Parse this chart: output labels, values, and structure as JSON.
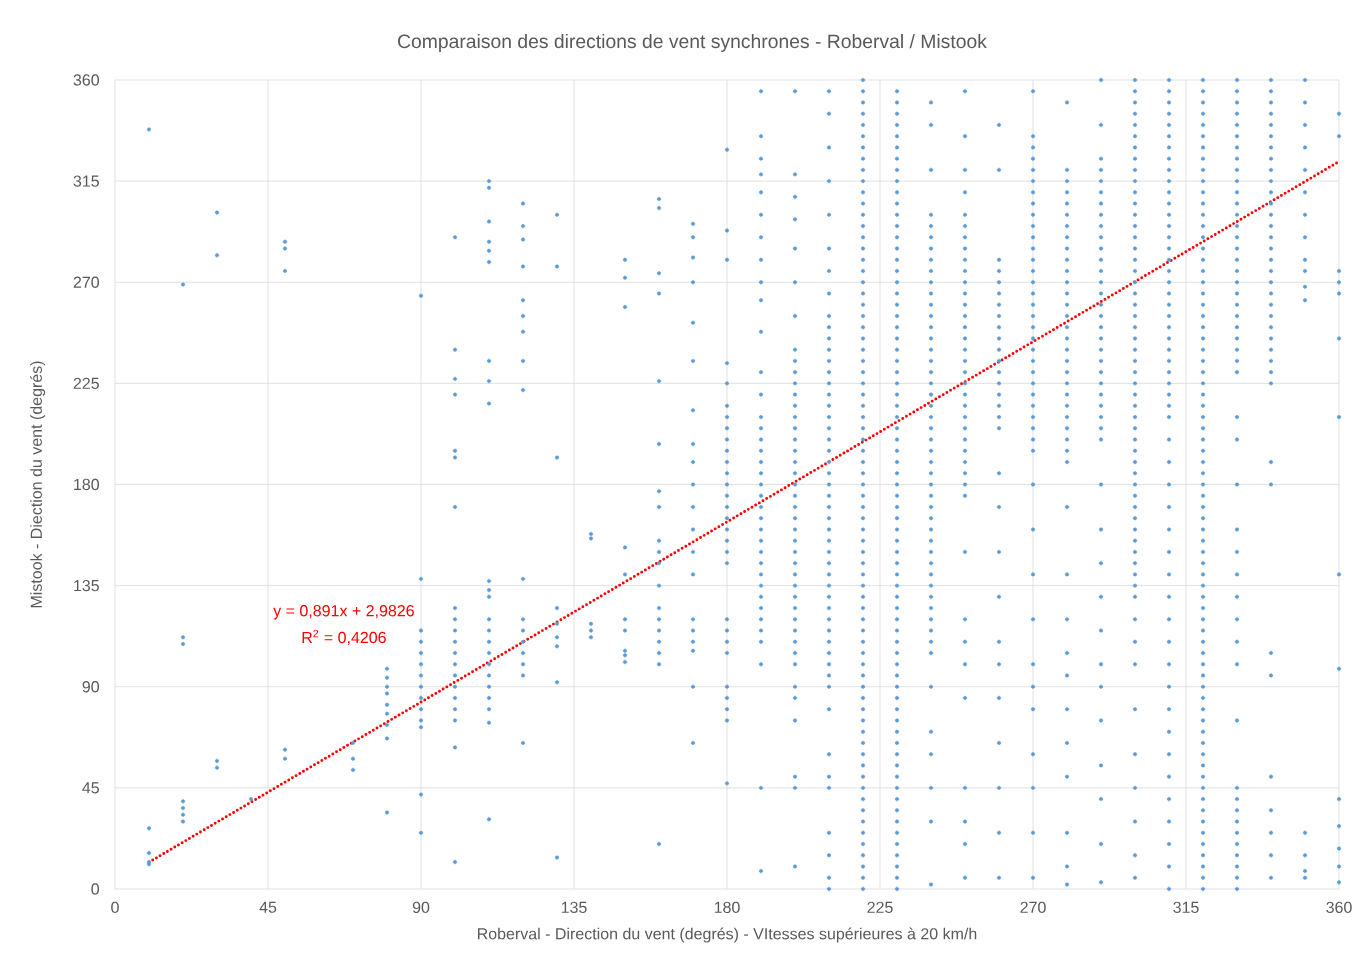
{
  "chart_data": {
    "type": "scatter",
    "title": "Comparaison des directions de vent synchrones - Roberval / Mistook",
    "xlabel": "Roberval - Direction du vent (degrés) - VItesses supérieures à 20 km/h",
    "ylabel": "Mistook - Diection du vent (degrés)",
    "annotations": [
      "y = 0,891x + 2,9826",
      "R$^{2}$ = 0,4206"
    ],
    "xlim": [
      0,
      360
    ],
    "ylim": [
      0,
      360
    ],
    "xticks": [
      0,
      45,
      90,
      135,
      180,
      225,
      270,
      315,
      360
    ],
    "yticks": [
      0,
      45,
      90,
      135,
      180,
      225,
      270,
      315,
      360
    ],
    "grid": true,
    "marker": "circle",
    "series": [
      {
        "color": "#5b9bd5",
        "x": [
          10,
          10,
          10,
          10,
          10
        ],
        "values": [
          11,
          12,
          16,
          27,
          338
        ]
      },
      {
        "color": "#5b9bd5",
        "x": [
          20,
          20,
          20,
          20,
          20,
          20,
          20
        ],
        "values": [
          30,
          33,
          36,
          39,
          109,
          112,
          269
        ]
      },
      {
        "color": "#5b9bd5",
        "x": [
          30,
          30,
          30,
          30
        ],
        "values": [
          54,
          57,
          282,
          301
        ]
      },
      {
        "color": "#5b9bd5",
        "x": [
          40
        ],
        "values": [
          40
        ]
      },
      {
        "color": "#5b9bd5",
        "x": [
          50,
          50,
          50,
          50,
          50
        ],
        "values": [
          58,
          62,
          275,
          285,
          288
        ]
      },
      {
        "color": "#5b9bd5",
        "x": [
          70,
          70,
          70
        ],
        "values": [
          53,
          58,
          65
        ]
      },
      {
        "color": "#5b9bd5",
        "x": [
          80,
          80,
          80,
          80,
          80,
          80,
          80,
          80,
          80
        ],
        "values": [
          34,
          67,
          73,
          78,
          82,
          87,
          90,
          94,
          98
        ]
      },
      {
        "color": "#5b9bd5",
        "x": [
          90,
          90,
          90,
          90,
          90,
          90,
          90,
          90,
          90,
          90,
          90,
          90,
          90,
          90
        ],
        "values": [
          25,
          42,
          72,
          75,
          80,
          85,
          90,
          95,
          100,
          105,
          110,
          115,
          138,
          264
        ]
      },
      {
        "color": "#5b9bd5",
        "x": [
          100,
          100,
          100,
          100,
          100,
          100,
          100,
          100,
          100,
          100,
          100,
          100,
          100,
          100,
          100,
          100,
          100,
          100,
          100,
          100
        ],
        "values": [
          12,
          63,
          75,
          80,
          85,
          90,
          95,
          100,
          105,
          110,
          115,
          120,
          125,
          170,
          192,
          195,
          220,
          227,
          240,
          290
        ]
      },
      {
        "color": "#5b9bd5",
        "x": [
          110,
          110,
          110,
          110,
          110,
          110,
          110,
          110,
          110,
          110,
          110,
          110,
          110,
          110,
          110,
          110,
          110,
          110,
          110,
          110,
          110,
          110,
          110
        ],
        "values": [
          31,
          74,
          80,
          85,
          90,
          95,
          100,
          105,
          110,
          115,
          120,
          130,
          133,
          137,
          216,
          226,
          235,
          279,
          284,
          288,
          297,
          312,
          315
        ]
      },
      {
        "color": "#5b9bd5",
        "x": [
          120,
          120,
          120,
          120,
          120,
          120,
          120,
          120,
          120,
          120,
          120,
          120,
          120,
          120,
          120,
          120,
          120
        ],
        "values": [
          65,
          95,
          100,
          105,
          110,
          115,
          120,
          138,
          222,
          235,
          248,
          255,
          262,
          277,
          289,
          295,
          305
        ]
      },
      {
        "color": "#5b9bd5",
        "x": [
          130,
          130,
          130,
          130,
          130,
          130,
          130,
          130,
          130
        ],
        "values": [
          14,
          92,
          108,
          112,
          118,
          125,
          192,
          277,
          300
        ]
      },
      {
        "color": "#5b9bd5",
        "x": [
          140,
          140,
          140,
          140,
          140
        ],
        "values": [
          112,
          115,
          118,
          156,
          158
        ]
      },
      {
        "color": "#5b9bd5",
        "x": [
          150,
          150,
          150,
          150,
          150,
          150,
          150,
          150,
          150,
          150
        ],
        "values": [
          101,
          104,
          106,
          115,
          120,
          140,
          152,
          259,
          272,
          280
        ]
      },
      {
        "color": "#5b9bd5",
        "x": [
          160,
          160,
          160,
          160,
          160,
          160,
          160,
          160,
          160,
          160,
          160,
          160,
          160,
          160,
          160,
          160,
          160,
          160,
          160
        ],
        "values": [
          20,
          100,
          105,
          110,
          115,
          120,
          125,
          135,
          145,
          150,
          155,
          170,
          177,
          198,
          226,
          265,
          274,
          303,
          307
        ]
      },
      {
        "color": "#5b9bd5",
        "x": [
          170,
          170,
          170,
          170,
          170,
          170,
          170,
          170,
          170,
          170,
          170,
          170,
          170,
          170,
          170,
          170,
          170,
          170,
          170,
          170
        ],
        "values": [
          65,
          90,
          106,
          110,
          115,
          120,
          140,
          150,
          160,
          170,
          180,
          190,
          198,
          213,
          235,
          252,
          270,
          281,
          290,
          296
        ]
      },
      {
        "color": "#5b9bd5",
        "x": [
          180,
          180,
          180,
          180,
          180,
          180,
          180,
          180,
          180,
          180,
          180,
          180,
          180,
          180,
          180,
          180,
          180,
          180,
          180,
          180,
          180,
          180,
          180,
          180,
          180,
          180,
          180,
          180,
          180
        ],
        "values": [
          47,
          75,
          80,
          85,
          90,
          105,
          110,
          115,
          120,
          145,
          150,
          155,
          160,
          165,
          170,
          175,
          180,
          185,
          190,
          195,
          200,
          205,
          210,
          215,
          225,
          234,
          280,
          293,
          329
        ]
      },
      {
        "color": "#5b9bd5",
        "x": [
          190,
          190,
          190,
          190,
          190,
          190,
          190,
          190,
          190,
          190,
          190,
          190,
          190,
          190,
          190,
          190,
          190,
          190,
          190,
          190,
          190,
          190,
          190,
          190,
          190,
          190,
          190,
          190,
          190,
          190,
          190,
          190,
          190,
          190,
          190,
          190,
          190
        ],
        "values": [
          8,
          45,
          100,
          110,
          115,
          120,
          125,
          130,
          135,
          140,
          145,
          150,
          155,
          160,
          165,
          170,
          175,
          180,
          185,
          190,
          195,
          200,
          205,
          210,
          220,
          230,
          248,
          262,
          270,
          280,
          290,
          300,
          310,
          318,
          325,
          335,
          355
        ]
      },
      {
        "color": "#5b9bd5",
        "x": [
          200,
          200,
          200,
          200,
          200,
          200,
          200,
          200,
          200,
          200,
          200,
          200,
          200,
          200,
          200,
          200,
          200,
          200,
          200,
          200,
          200,
          200,
          200,
          200,
          200,
          200,
          200,
          200,
          200,
          200,
          200,
          200,
          200,
          200,
          200,
          200,
          200,
          200,
          200,
          200,
          200,
          200
        ],
        "values": [
          10,
          45,
          50,
          75,
          85,
          90,
          100,
          105,
          110,
          115,
          120,
          125,
          130,
          135,
          140,
          145,
          150,
          155,
          160,
          165,
          170,
          175,
          180,
          185,
          190,
          195,
          200,
          205,
          210,
          215,
          220,
          225,
          230,
          235,
          240,
          255,
          270,
          285,
          298,
          308,
          318,
          355
        ]
      },
      {
        "color": "#5b9bd5",
        "x": [
          210,
          210,
          210,
          210,
          210,
          210,
          210,
          210,
          210,
          210,
          210,
          210,
          210,
          210,
          210,
          210,
          210,
          210,
          210,
          210,
          210,
          210,
          210,
          210,
          210,
          210,
          210,
          210,
          210,
          210,
          210,
          210,
          210,
          210,
          210,
          210,
          210,
          210,
          210,
          210,
          210,
          210,
          210,
          210,
          210,
          210,
          210,
          210,
          210,
          210
        ],
        "values": [
          0,
          5,
          15,
          25,
          45,
          50,
          60,
          80,
          90,
          95,
          100,
          105,
          110,
          115,
          120,
          125,
          130,
          135,
          140,
          145,
          150,
          155,
          160,
          165,
          170,
          175,
          180,
          185,
          190,
          195,
          200,
          205,
          210,
          215,
          220,
          225,
          230,
          235,
          240,
          245,
          250,
          255,
          265,
          275,
          285,
          300,
          315,
          330,
          345,
          355
        ]
      },
      {
        "color": "#5b9bd5",
        "x": [
          220,
          220,
          220,
          220,
          220,
          220,
          220,
          220,
          220,
          220,
          220,
          220,
          220,
          220,
          220,
          220,
          220,
          220,
          220,
          220,
          220,
          220,
          220,
          220,
          220,
          220,
          220,
          220,
          220,
          220,
          220,
          220,
          220,
          220,
          220,
          220,
          220,
          220,
          220,
          220,
          220,
          220,
          220,
          220,
          220,
          220,
          220,
          220,
          220,
          220,
          220,
          220,
          220,
          220,
          220,
          220,
          220,
          220,
          220,
          220,
          220,
          220,
          220,
          220,
          220,
          220,
          220,
          220,
          220,
          220,
          220,
          220,
          220
        ],
        "values": [
          0,
          5,
          10,
          15,
          20,
          25,
          30,
          35,
          40,
          45,
          50,
          55,
          60,
          65,
          70,
          75,
          80,
          85,
          90,
          95,
          100,
          105,
          110,
          115,
          120,
          125,
          130,
          135,
          140,
          145,
          150,
          155,
          160,
          165,
          170,
          175,
          180,
          185,
          190,
          195,
          200,
          205,
          210,
          215,
          220,
          225,
          230,
          235,
          240,
          245,
          250,
          255,
          260,
          265,
          270,
          275,
          280,
          285,
          290,
          295,
          300,
          305,
          310,
          315,
          320,
          325,
          330,
          335,
          340,
          345,
          350,
          355,
          360
        ]
      },
      {
        "color": "#5b9bd5",
        "x": [
          230,
          230,
          230,
          230,
          230,
          230,
          230,
          230,
          230,
          230,
          230,
          230,
          230,
          230,
          230,
          230,
          230,
          230,
          230,
          230,
          230,
          230,
          230,
          230,
          230,
          230,
          230,
          230,
          230,
          230,
          230,
          230,
          230,
          230,
          230,
          230,
          230,
          230,
          230,
          230,
          230,
          230,
          230,
          230,
          230,
          230,
          230,
          230,
          230,
          230,
          230,
          230,
          230,
          230,
          230,
          230,
          230,
          230,
          230,
          230,
          230,
          230,
          230,
          230,
          230,
          230,
          230,
          230,
          230,
          230,
          230,
          230
        ],
        "values": [
          0,
          5,
          10,
          15,
          20,
          25,
          30,
          35,
          40,
          45,
          50,
          55,
          60,
          65,
          70,
          75,
          80,
          85,
          90,
          95,
          100,
          105,
          110,
          115,
          120,
          125,
          130,
          135,
          140,
          145,
          150,
          155,
          160,
          165,
          170,
          175,
          180,
          185,
          190,
          195,
          200,
          205,
          210,
          215,
          220,
          225,
          230,
          235,
          240,
          245,
          250,
          255,
          260,
          265,
          270,
          275,
          280,
          285,
          290,
          295,
          300,
          305,
          310,
          315,
          320,
          325,
          330,
          335,
          340,
          345,
          350,
          355
        ]
      },
      {
        "color": "#5b9bd5",
        "x": [
          240,
          240,
          240,
          240,
          240,
          240,
          240,
          240,
          240,
          240,
          240,
          240,
          240,
          240,
          240,
          240,
          240,
          240,
          240,
          240,
          240,
          240,
          240,
          240,
          240,
          240,
          240,
          240,
          240,
          240,
          240,
          240,
          240,
          240,
          240,
          240,
          240,
          240,
          240,
          240,
          240,
          240,
          240,
          240,
          240,
          240,
          240,
          240,
          240
        ],
        "values": [
          2,
          30,
          45,
          60,
          70,
          90,
          105,
          110,
          115,
          120,
          125,
          130,
          135,
          140,
          145,
          150,
          155,
          160,
          165,
          170,
          175,
          180,
          185,
          190,
          195,
          200,
          205,
          210,
          215,
          220,
          225,
          230,
          235,
          240,
          245,
          250,
          255,
          260,
          265,
          270,
          275,
          280,
          285,
          290,
          295,
          300,
          320,
          340,
          350
        ]
      },
      {
        "color": "#5b9bd5",
        "x": [
          250,
          250,
          250,
          250,
          250,
          250,
          250,
          250,
          250,
          250,
          250,
          250,
          250,
          250,
          250,
          250,
          250,
          250,
          250,
          250,
          250,
          250,
          250,
          250,
          250,
          250,
          250,
          250,
          250,
          250,
          250,
          250,
          250,
          250,
          250,
          250,
          250,
          250,
          250
        ],
        "values": [
          5,
          20,
          30,
          45,
          85,
          100,
          110,
          120,
          150,
          175,
          180,
          185,
          190,
          195,
          200,
          205,
          210,
          215,
          220,
          225,
          230,
          235,
          240,
          245,
          250,
          255,
          260,
          265,
          270,
          275,
          280,
          285,
          290,
          295,
          300,
          310,
          320,
          335,
          355
        ]
      },
      {
        "color": "#5b9bd5",
        "x": [
          260,
          260,
          260,
          260,
          260,
          260,
          260,
          260,
          260,
          260,
          260,
          260,
          260,
          260,
          260,
          260,
          260,
          260,
          260,
          260,
          260,
          260,
          260,
          260,
          260,
          260,
          260,
          260,
          260
        ],
        "values": [
          5,
          25,
          45,
          65,
          85,
          100,
          110,
          130,
          150,
          170,
          185,
          205,
          210,
          215,
          220,
          225,
          230,
          235,
          240,
          245,
          250,
          255,
          260,
          265,
          270,
          275,
          280,
          320,
          340
        ]
      },
      {
        "color": "#5b9bd5",
        "x": [
          270,
          270,
          270,
          270,
          270,
          270,
          270,
          270,
          270,
          270,
          270,
          270,
          270,
          270,
          270,
          270,
          270,
          270,
          270,
          270,
          270,
          270,
          270,
          270,
          270,
          270,
          270,
          270,
          270,
          270,
          270,
          270,
          270,
          270,
          270,
          270,
          270,
          270,
          270,
          270,
          270
        ],
        "values": [
          5,
          25,
          45,
          60,
          80,
          90,
          100,
          120,
          140,
          160,
          180,
          195,
          200,
          205,
          210,
          215,
          220,
          225,
          230,
          235,
          240,
          245,
          250,
          255,
          260,
          265,
          270,
          275,
          280,
          285,
          290,
          295,
          300,
          305,
          310,
          315,
          320,
          325,
          330,
          335,
          355
        ]
      },
      {
        "color": "#5b9bd5",
        "x": [
          280,
          280,
          280,
          280,
          280,
          280,
          280,
          280,
          280,
          280,
          280,
          280,
          280,
          280,
          280,
          280,
          280,
          280,
          280,
          280,
          280,
          280,
          280,
          280,
          280,
          280,
          280,
          280,
          280,
          280,
          280,
          280,
          280,
          280,
          280,
          280,
          280,
          280,
          280
        ],
        "values": [
          2,
          10,
          25,
          50,
          65,
          80,
          95,
          105,
          120,
          140,
          170,
          190,
          195,
          200,
          205,
          210,
          215,
          220,
          225,
          230,
          235,
          240,
          245,
          250,
          255,
          260,
          265,
          270,
          275,
          280,
          285,
          290,
          295,
          300,
          305,
          310,
          315,
          320,
          350
        ]
      },
      {
        "color": "#5b9bd5",
        "x": [
          290,
          290,
          290,
          290,
          290,
          290,
          290,
          290,
          290,
          290,
          290,
          290,
          290,
          290,
          290,
          290,
          290,
          290,
          290,
          290,
          290,
          290,
          290,
          290,
          290,
          290,
          290,
          290,
          290,
          290,
          290,
          290,
          290,
          290,
          290,
          290,
          290,
          290,
          290,
          290
        ],
        "values": [
          3,
          20,
          40,
          55,
          75,
          90,
          100,
          115,
          130,
          145,
          160,
          180,
          200,
          205,
          210,
          215,
          220,
          225,
          230,
          235,
          240,
          245,
          250,
          255,
          260,
          265,
          270,
          275,
          280,
          285,
          290,
          295,
          300,
          305,
          310,
          315,
          320,
          325,
          340,
          360
        ]
      },
      {
        "color": "#5b9bd5",
        "x": [
          300,
          300,
          300,
          300,
          300,
          300,
          300,
          300,
          300,
          300,
          300,
          300,
          300,
          300,
          300,
          300,
          300,
          300,
          300,
          300,
          300,
          300,
          300,
          300,
          300,
          300,
          300,
          300,
          300,
          300,
          300,
          300,
          300,
          300,
          300,
          300,
          300,
          300,
          300,
          300,
          300,
          300,
          300,
          300,
          300,
          300,
          300,
          300,
          300,
          300,
          300,
          300,
          300,
          300,
          300,
          300
        ],
        "values": [
          5,
          15,
          30,
          45,
          60,
          80,
          100,
          110,
          120,
          130,
          135,
          140,
          145,
          150,
          155,
          160,
          165,
          170,
          175,
          180,
          185,
          190,
          195,
          200,
          205,
          210,
          215,
          220,
          225,
          230,
          235,
          240,
          245,
          250,
          255,
          260,
          265,
          270,
          275,
          280,
          285,
          290,
          295,
          300,
          305,
          310,
          315,
          320,
          325,
          330,
          335,
          340,
          345,
          350,
          355,
          360
        ]
      },
      {
        "color": "#5b9bd5",
        "x": [
          310,
          310,
          310,
          310,
          310,
          310,
          310,
          310,
          310,
          310,
          310,
          310,
          310,
          310,
          310,
          310,
          310,
          310,
          310,
          310,
          310,
          310,
          310,
          310,
          310,
          310,
          310,
          310,
          310,
          310,
          310,
          310,
          310,
          310,
          310,
          310,
          310,
          310,
          310,
          310,
          310,
          310,
          310,
          310,
          310,
          310,
          310,
          310,
          310,
          310,
          310,
          310
        ],
        "values": [
          0,
          10,
          20,
          30,
          40,
          50,
          60,
          70,
          80,
          90,
          100,
          110,
          120,
          130,
          140,
          150,
          160,
          170,
          180,
          190,
          200,
          210,
          215,
          220,
          225,
          230,
          235,
          240,
          245,
          250,
          255,
          260,
          265,
          270,
          275,
          280,
          285,
          290,
          295,
          300,
          305,
          310,
          315,
          320,
          325,
          330,
          335,
          340,
          345,
          350,
          355,
          360
        ]
      },
      {
        "color": "#5b9bd5",
        "x": [
          320,
          320,
          320,
          320,
          320,
          320,
          320,
          320,
          320,
          320,
          320,
          320,
          320,
          320,
          320,
          320,
          320,
          320,
          320,
          320,
          320,
          320,
          320,
          320,
          320,
          320,
          320,
          320,
          320,
          320,
          320,
          320,
          320,
          320,
          320,
          320,
          320,
          320,
          320,
          320,
          320,
          320,
          320,
          320,
          320,
          320,
          320,
          320,
          320,
          320,
          320,
          320,
          320,
          320,
          320,
          320,
          320,
          320,
          320,
          320,
          320,
          320,
          320,
          320,
          320,
          320,
          320,
          320,
          320,
          320,
          320,
          320,
          320
        ],
        "values": [
          0,
          5,
          10,
          15,
          20,
          25,
          30,
          35,
          40,
          45,
          50,
          55,
          60,
          65,
          70,
          75,
          80,
          85,
          90,
          95,
          100,
          105,
          110,
          115,
          120,
          125,
          130,
          135,
          140,
          145,
          150,
          155,
          160,
          165,
          170,
          175,
          180,
          185,
          190,
          195,
          200,
          205,
          210,
          215,
          220,
          225,
          230,
          235,
          240,
          245,
          250,
          255,
          260,
          265,
          270,
          275,
          280,
          285,
          290,
          295,
          300,
          305,
          310,
          315,
          320,
          325,
          330,
          335,
          340,
          345,
          350,
          355,
          360
        ]
      },
      {
        "color": "#5b9bd5",
        "x": [
          330,
          330,
          330,
          330,
          330,
          330,
          330,
          330,
          330,
          330,
          330,
          330,
          330,
          330,
          330,
          330,
          330,
          330,
          330,
          330,
          330,
          330,
          330,
          330,
          330,
          330,
          330,
          330,
          330,
          330,
          330,
          330,
          330,
          330,
          330,
          330,
          330,
          330,
          330,
          330,
          330,
          330,
          330,
          330,
          330,
          330,
          330,
          330
        ],
        "values": [
          0,
          5,
          10,
          15,
          20,
          25,
          30,
          35,
          40,
          45,
          75,
          100,
          110,
          120,
          130,
          140,
          150,
          160,
          180,
          200,
          210,
          230,
          235,
          240,
          245,
          250,
          255,
          260,
          265,
          270,
          275,
          280,
          285,
          290,
          295,
          300,
          305,
          310,
          315,
          320,
          325,
          330,
          335,
          340,
          345,
          350,
          355,
          360
        ]
      },
      {
        "color": "#5b9bd5",
        "x": [
          340,
          340,
          340,
          340,
          340,
          340,
          340,
          340,
          340,
          340,
          340,
          340,
          340,
          340,
          340,
          340,
          340,
          340,
          340,
          340,
          340,
          340,
          340,
          340,
          340,
          340,
          340,
          340,
          340,
          340,
          340,
          340,
          340,
          340,
          340,
          340,
          340
        ],
        "values": [
          5,
          15,
          25,
          35,
          50,
          95,
          105,
          180,
          190,
          225,
          230,
          235,
          240,
          245,
          250,
          255,
          260,
          265,
          270,
          275,
          280,
          285,
          290,
          295,
          300,
          305,
          310,
          315,
          320,
          325,
          330,
          335,
          340,
          345,
          350,
          355,
          360
        ]
      },
      {
        "color": "#5b9bd5",
        "x": [
          350,
          350,
          350,
          350,
          350,
          350,
          350,
          350,
          350,
          350,
          350,
          350,
          350,
          350,
          350,
          350
        ],
        "values": [
          5,
          8,
          15,
          25,
          262,
          268,
          275,
          280,
          290,
          300,
          310,
          320,
          330,
          340,
          350,
          360
        ]
      },
      {
        "color": "#5b9bd5",
        "x": [
          360,
          360,
          360,
          360,
          360,
          360,
          360,
          360,
          360,
          360,
          360,
          360,
          360,
          360
        ],
        "values": [
          3,
          10,
          18,
          28,
          40,
          98,
          140,
          210,
          245,
          265,
          270,
          275,
          335,
          345
        ]
      },
      {
        "type": "line",
        "color": "#ff0000",
        "line_style": "dotted",
        "marker": "none",
        "x": [
          10,
          360
        ],
        "values": [
          11.9,
          323.7
        ]
      }
    ]
  }
}
